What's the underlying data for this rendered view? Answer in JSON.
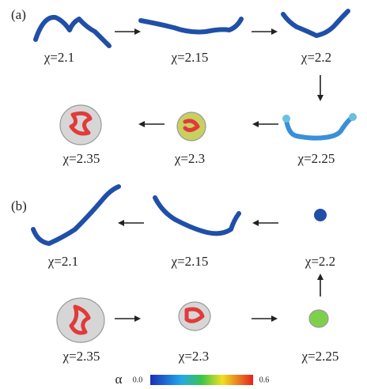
{
  "panel_a": {
    "label": "(a)",
    "states": [
      "χ=2.1",
      "χ=2.15",
      "χ=2.2",
      "χ=2.35",
      "χ=2.3",
      "χ=2.25"
    ]
  },
  "panel_b": {
    "label": "(b)",
    "states": [
      "χ=2.1",
      "χ=2.15",
      "χ=2.2",
      "χ=2.35",
      "χ=2.3",
      "χ=2.25"
    ]
  },
  "colorbar": {
    "symbol": "α",
    "min_label": "0.0",
    "max_label": "0.6"
  }
}
